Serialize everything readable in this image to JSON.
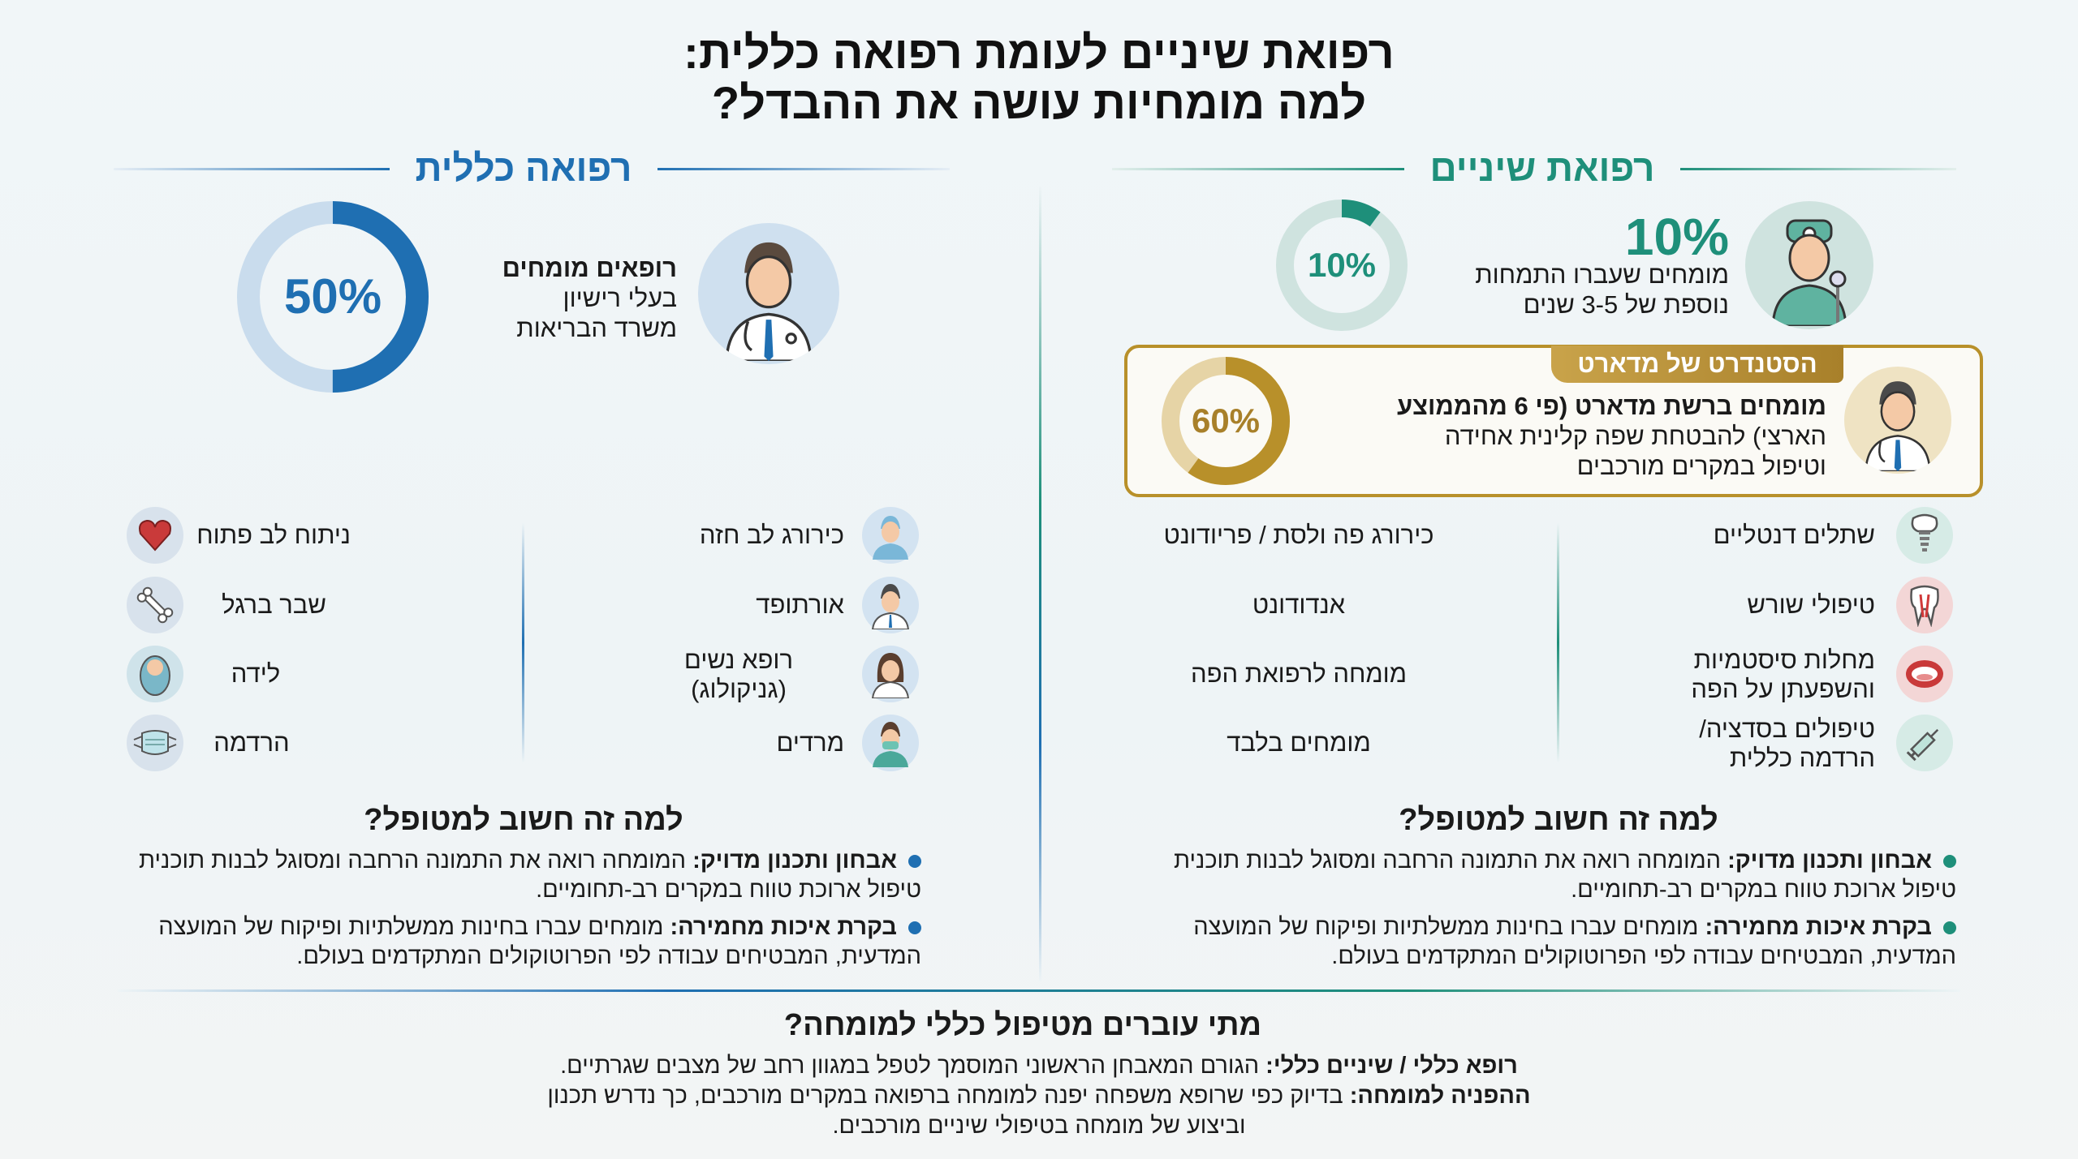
{
  "title": {
    "line1": "רפואת שיניים לעומת רפואה כללית:",
    "line2": "למה מומחיות עושה את ההבדל?"
  },
  "colors": {
    "dental": "#1e8f7a",
    "dental_light": "#cfe3df",
    "general": "#1f6fb2",
    "general_light": "#c9dced",
    "gold": "#b8902a",
    "gold_light": "#e6d4a6"
  },
  "dental": {
    "header": "רפואת שיניים",
    "stat": {
      "big_value": "10%",
      "donut_label": "10%",
      "donut_percent": 10,
      "text": "מומחים שעברו התמחות\nנוספת של 3-5 שנים",
      "icon": "dentist-avatar-icon"
    },
    "madart": {
      "badge": "הסטנדרט של מדארט",
      "donut_label": "60%",
      "donut_percent": 60,
      "text_bold": "מומחים ברשת מדארט (פי 6 מהממוצע",
      "text_rest": "הארצי) להבטחת שפה קלינית אחידה\nוטיפול במקרים מורכבים",
      "icon": "doctor-avatar-icon"
    },
    "cases": [
      {
        "label": "שתלים דנטליים",
        "specialist": "כירורג פה ולסת / פריודונט",
        "icon": "dental-implant-icon"
      },
      {
        "label": "טיפולי שורש",
        "specialist": "אנדודונט",
        "icon": "tooth-root-icon"
      },
      {
        "label": "מחלות סיסטמיות\nוהשפעתן על הפה",
        "specialist": "מומחה לרפואת הפה",
        "icon": "mouth-icon"
      },
      {
        "label": "טיפולים בסדציה/\nהרדמה כללית",
        "specialist": "מומחים בלבד",
        "icon": "syringe-icon"
      }
    ],
    "why": {
      "title": "למה זה חשוב למטופל?",
      "bullets": [
        {
          "bold": "אבחון ותכנון מדויק:",
          "text": " המומחה רואה את התמונה הרחבה ומסוגל לבנות תוכנית טיפול ארוכת טווח במקרים רב-תחומיים."
        },
        {
          "bold": "בקרת איכות מחמירה:",
          "text": " מומחים עברו בחינות ממשלתיות ופיקוח של המועצה המדעית, המבטיחים עבודה לפי הפרוטוקולים המתקדמים בעולם."
        }
      ]
    }
  },
  "general": {
    "header": "רפואה כללית",
    "stat": {
      "donut_label": "50%",
      "donut_percent": 50,
      "text_bold": "רופאים מומחים",
      "text_rest": "בעלי רישיון\nמשרד הבריאות",
      "icon": "doctor-avatar-icon"
    },
    "cases": [
      {
        "label": "ניתוח לב פתוח",
        "specialist": "כירורג לב חזה",
        "icon": "heart-icon",
        "spec_icon": "surgeon-icon"
      },
      {
        "label": "שבר ברגל",
        "specialist": "אורתופד",
        "icon": "bone-icon",
        "spec_icon": "doctor-icon"
      },
      {
        "label": "לידה",
        "specialist": "רופא נשים\n(גניקולוג)",
        "icon": "baby-icon",
        "spec_icon": "female-doctor-icon"
      },
      {
        "label": "הרדמה",
        "specialist": "מרדים",
        "icon": "mask-icon",
        "spec_icon": "anesthesiologist-icon"
      }
    ],
    "why": {
      "title": "למה זה חשוב למטופל?",
      "bullets": [
        {
          "bold": "אבחון ותכנון מדויק:",
          "text": " המומחה רואה את התמונה הרחבה ומסוגל לבנות תוכנית טיפול ארוכת טווח במקרים רב-תחומיים."
        },
        {
          "bold": "בקרת איכות מחמירה:",
          "text": " מומחים עברו בחינות ממשלתיות ופיקוח של המועצה המדעית, המבטיחים עבודה לפי הפרוטוקולים המתקדמים בעולם."
        }
      ]
    }
  },
  "footer": {
    "title": "מתי עוברים מטיפול כללי למומחה?",
    "p1_bold": "רופא כללי / שיניים כללי:",
    "p1_text": " הגורם המאבחן הראשוני המוסמך לטפל במגוון רחב של מצבים שגרתיים.",
    "p2_bold": "ההפניה למומחה:",
    "p2_text": " בדיוק כפי שרופא משפחה יפנה למומחה ברפואה במקרים מורכבים, כך נדרש תכנון וביצוע של מומחה בטיפולי שיניים מורכבים."
  }
}
